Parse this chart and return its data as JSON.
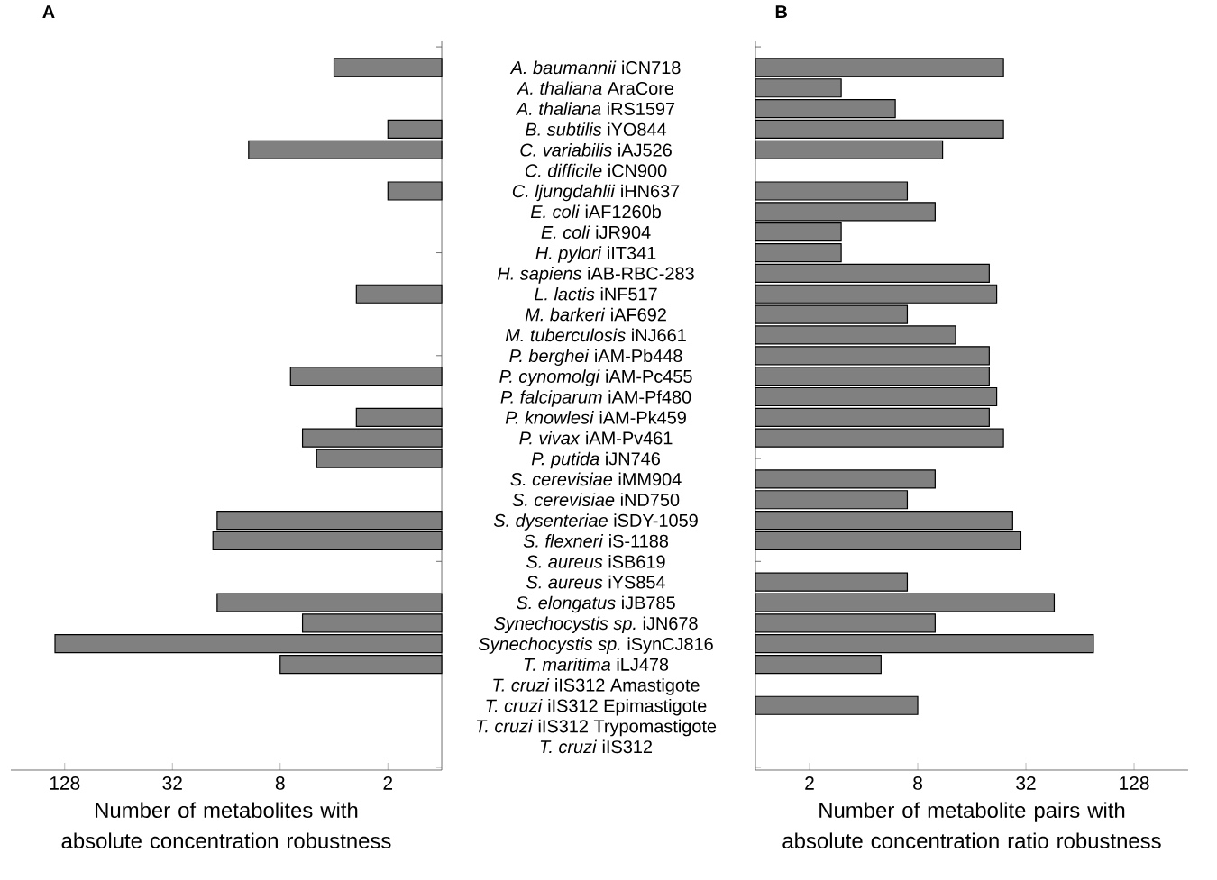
{
  "chart_data": [
    {
      "type": "bar",
      "orientation": "horizontal",
      "title": "A",
      "log": "x",
      "categories": [
        "*A. baumannii* iCN718",
        "*A. thaliana* AraCore",
        "*A. thaliana* iRS1597",
        "*B. subtilis* iYO844",
        "*C. variabilis* iAJ526",
        "*C. difficile* iCN900",
        "*C. ljungdahlii* iHN637",
        "*E. coli* iAF1260b",
        "*E. coli* iJR904",
        "*H. pylori* iIT341",
        "*H. sapiens* iAB-RBC-283",
        "*L. lactis* iNF517",
        "*M. barkeri* iAF692",
        "*M. tuberculosis* iNJ661",
        "*P. berghei* iAM-Pb448",
        "*P. cynomolgi* iAM-Pc455",
        "*P. falciparum* iAM-Pf480",
        "*P. knowlesi* iAM-Pk459",
        "*P. vivax* iAM-Pv461",
        "*P. putida* iJN746",
        "*S. cerevisiae* iMM904",
        "*S. cerevisiae* iND750",
        "*S. dysenteriae* iSDY-1059",
        "*S. flexneri* iS-1188",
        "*S. aureus* iSB619",
        "*S. aureus* iYS854",
        "*S. elongatus* iJB785",
        "*Synechocystis sp.* iJN678",
        "*Synechocystis sp.* iSynCJ816",
        "*T. maritima* iLJ478",
        "*T. cruzi* iIS312 Amastigote",
        "*T. cruzi* iIS312 Epimastigote",
        "*T. cruzi* iIS312 Trypomastigote",
        "*T. cruzi* iIS312"
      ],
      "values": [
        4,
        null,
        null,
        2,
        12,
        null,
        2,
        null,
        null,
        null,
        null,
        3,
        null,
        null,
        null,
        7,
        null,
        3,
        6,
        5,
        null,
        null,
        18,
        19,
        null,
        null,
        18,
        6,
        145,
        8,
        null,
        null,
        null,
        null
      ],
      "color": "#808080",
      "xlim": [
        256,
        1
      ],
      "xticks": [
        2,
        8,
        32,
        128
      ],
      "xlabel": "Number of metabolites with absolute concentration robustness"
    },
    {
      "type": "bar",
      "orientation": "horizontal",
      "title": "B",
      "log": "x",
      "tick_labels": "x",
      "categories": [
        null,
        null,
        null,
        null,
        null,
        null,
        null,
        null,
        null,
        null,
        null,
        null,
        null,
        null,
        null,
        null,
        null,
        null,
        null,
        null,
        null,
        null,
        null,
        null,
        null,
        null,
        null,
        null,
        null,
        null,
        null,
        null,
        null,
        null
      ],
      "values": [
        24,
        3,
        6,
        24,
        11,
        null,
        7,
        10,
        3,
        3,
        20,
        22,
        7,
        13,
        20,
        20,
        22,
        20,
        24,
        null,
        10,
        7,
        27,
        30,
        null,
        7,
        46,
        10,
        76,
        5,
        null,
        8,
        null,
        null
      ],
      "color": "#808080",
      "xlim": [
        1,
        256
      ],
      "xticks": [
        2,
        8,
        32,
        128
      ],
      "xlabel": "Number of metabolite pairs with absolute concentration ratio robustness"
    }
  ]
}
